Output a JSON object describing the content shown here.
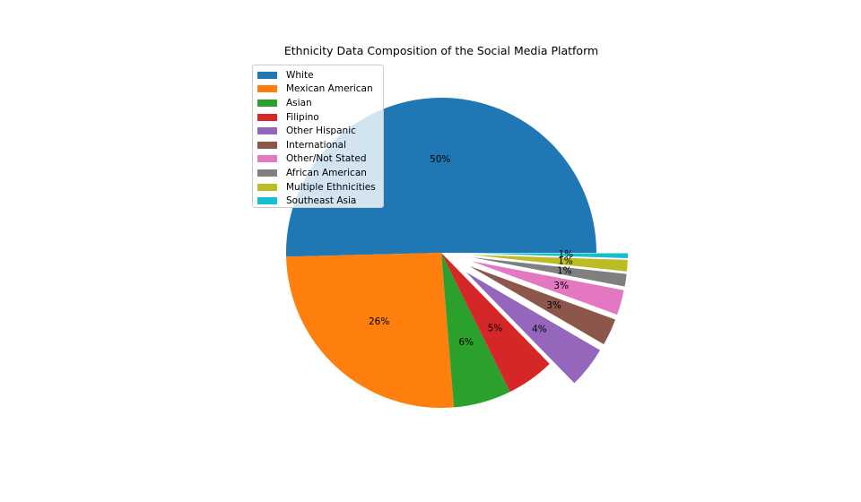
{
  "chart_data": {
    "type": "pie",
    "title": "Ethnicity Data Composition of the Social Media Platform",
    "categories": [
      "White",
      "Mexican American",
      "Asian",
      "Filipino",
      "Other Hispanic",
      "International",
      "Other/Not Stated",
      "African American",
      "Multiple Ethnicities",
      "Southeast Asia"
    ],
    "values": [
      50.4,
      25.9,
      6.0,
      5.0,
      4.3,
      2.8,
      2.6,
      1.3,
      1.2,
      0.5
    ],
    "labels": [
      "50%",
      "26%",
      "6%",
      "5%",
      "4%",
      "3%",
      "3%",
      "1%",
      "1%",
      "1%"
    ],
    "colors": [
      "#1f77b4",
      "#ff7f0e",
      "#2ca02c",
      "#d62728",
      "#9467bd",
      "#8c564b",
      "#e377c2",
      "#7f7f7f",
      "#bcbd22",
      "#17becf"
    ],
    "exploded": [
      false,
      false,
      false,
      false,
      true,
      true,
      true,
      true,
      true,
      true
    ],
    "start_angle": 0,
    "direction": "counterclockwise",
    "legend_position": "upper-left"
  }
}
